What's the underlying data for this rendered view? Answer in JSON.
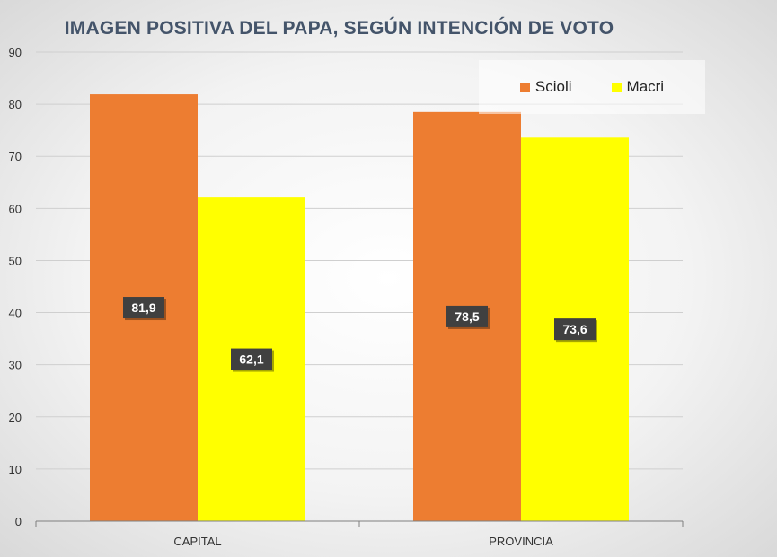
{
  "chart_data": {
    "type": "bar",
    "title": "IMAGEN POSITIVA DEL PAPA, SEGÚN INTENCIÓN DE VOTO",
    "xlabel": "",
    "ylabel": "",
    "categories": [
      "CAPITAL",
      "PROVINCIA"
    ],
    "series": [
      {
        "name": "Scioli",
        "color": "#ed7d31",
        "values": [
          81.9,
          78.5
        ],
        "labels": [
          "81,9",
          "78,5"
        ]
      },
      {
        "name": "Macri",
        "color": "#ffff00",
        "values": [
          62.1,
          73.6
        ],
        "labels": [
          "62,1",
          "73,6"
        ]
      }
    ],
    "ylim": [
      0,
      90
    ],
    "yticks": [
      0,
      10,
      20,
      30,
      40,
      50,
      60,
      70,
      80,
      90
    ],
    "grid": true,
    "legend_position": "top-right"
  }
}
